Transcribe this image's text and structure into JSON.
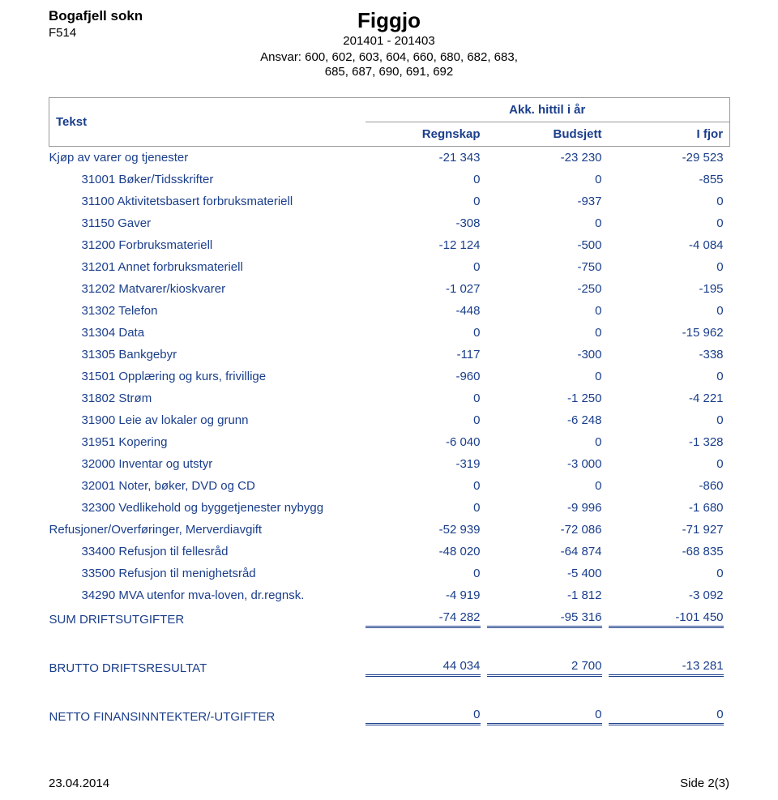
{
  "header": {
    "org_name": "Bogafjell sokn",
    "org_code": "F514",
    "title": "Figgjo",
    "period": "201401 - 201403",
    "ansvar_line1": "Ansvar: 600, 602, 603, 604, 660, 680, 682, 683,",
    "ansvar_line2": "685, 687, 690, 691, 692"
  },
  "columns": {
    "tekst": "Tekst",
    "akk": "Akk. hittil i år",
    "regnskap": "Regnskap",
    "budsjett": "Budsjett",
    "ifjor": "I fjor"
  },
  "colors": {
    "text_primary": "#1a3e8b",
    "text_black": "#000000",
    "border": "#999999",
    "background": "#ffffff"
  },
  "rows": [
    {
      "label": "Kjøp av varer og tjenester",
      "indent": 1,
      "regnskap": "-21 343",
      "budsjett": "-23 230",
      "ifjor": "-29 523"
    },
    {
      "label": "31001 Bøker/Tidsskrifter",
      "indent": 2,
      "regnskap": "0",
      "budsjett": "0",
      "ifjor": "-855"
    },
    {
      "label": "31100 Aktivitetsbasert forbruksmateriell",
      "indent": 2,
      "regnskap": "0",
      "budsjett": "-937",
      "ifjor": "0"
    },
    {
      "label": "31150 Gaver",
      "indent": 2,
      "regnskap": "-308",
      "budsjett": "0",
      "ifjor": "0"
    },
    {
      "label": "31200 Forbruksmateriell",
      "indent": 2,
      "regnskap": "-12 124",
      "budsjett": "-500",
      "ifjor": "-4 084"
    },
    {
      "label": "31201 Annet forbruksmateriell",
      "indent": 2,
      "regnskap": "0",
      "budsjett": "-750",
      "ifjor": "0"
    },
    {
      "label": "31202 Matvarer/kioskvarer",
      "indent": 2,
      "regnskap": "-1 027",
      "budsjett": "-250",
      "ifjor": "-195"
    },
    {
      "label": "31302 Telefon",
      "indent": 2,
      "regnskap": "-448",
      "budsjett": "0",
      "ifjor": "0"
    },
    {
      "label": "31304 Data",
      "indent": 2,
      "regnskap": "0",
      "budsjett": "0",
      "ifjor": "-15 962"
    },
    {
      "label": "31305 Bankgebyr",
      "indent": 2,
      "regnskap": "-117",
      "budsjett": "-300",
      "ifjor": "-338"
    },
    {
      "label": "31501 Opplæring og kurs, frivillige",
      "indent": 2,
      "regnskap": "-960",
      "budsjett": "0",
      "ifjor": "0"
    },
    {
      "label": "31802 Strøm",
      "indent": 2,
      "regnskap": "0",
      "budsjett": "-1 250",
      "ifjor": "-4 221"
    },
    {
      "label": "31900 Leie av lokaler og grunn",
      "indent": 2,
      "regnskap": "0",
      "budsjett": "-6 248",
      "ifjor": "0"
    },
    {
      "label": "31951 Kopering",
      "indent": 2,
      "regnskap": "-6 040",
      "budsjett": "0",
      "ifjor": "-1 328"
    },
    {
      "label": "32000 Inventar og utstyr",
      "indent": 2,
      "regnskap": "-319",
      "budsjett": "-3 000",
      "ifjor": "0"
    },
    {
      "label": "32001 Noter, bøker, DVD og CD",
      "indent": 2,
      "regnskap": "0",
      "budsjett": "0",
      "ifjor": "-860"
    },
    {
      "label": "32300 Vedlikehold og byggetjenester nybygg",
      "indent": 2,
      "regnskap": "0",
      "budsjett": "-9 996",
      "ifjor": "-1 680"
    },
    {
      "label": "Refusjoner/Overføringer, Merverdiavgift",
      "indent": 1,
      "regnskap": "-52 939",
      "budsjett": "-72 086",
      "ifjor": "-71 927"
    },
    {
      "label": "33400 Refusjon til fellesråd",
      "indent": 2,
      "regnskap": "-48 020",
      "budsjett": "-64 874",
      "ifjor": "-68 835"
    },
    {
      "label": "33500 Refusjon til menighetsråd",
      "indent": 2,
      "regnskap": "0",
      "budsjett": "-5 400",
      "ifjor": "0"
    },
    {
      "label": "34290 MVA utenfor mva-loven, dr.regnsk.",
      "indent": 2,
      "regnskap": "-4 919",
      "budsjett": "-1 812",
      "ifjor": "-3 092"
    }
  ],
  "sum_drift": {
    "label": "SUM DRIFTSUTGIFTER",
    "regnskap": "-74 282",
    "budsjett": "-95 316",
    "ifjor": "-101 450"
  },
  "brutto": {
    "label": "BRUTTO DRIFTSRESULTAT",
    "regnskap": "44 034",
    "budsjett": "2 700",
    "ifjor": "-13 281"
  },
  "netto": {
    "label": "NETTO FINANSINNTEKTER/-UTGIFTER",
    "regnskap": "0",
    "budsjett": "0",
    "ifjor": "0"
  },
  "footer": {
    "date": "23.04.2014",
    "page": "Side 2(3)"
  }
}
